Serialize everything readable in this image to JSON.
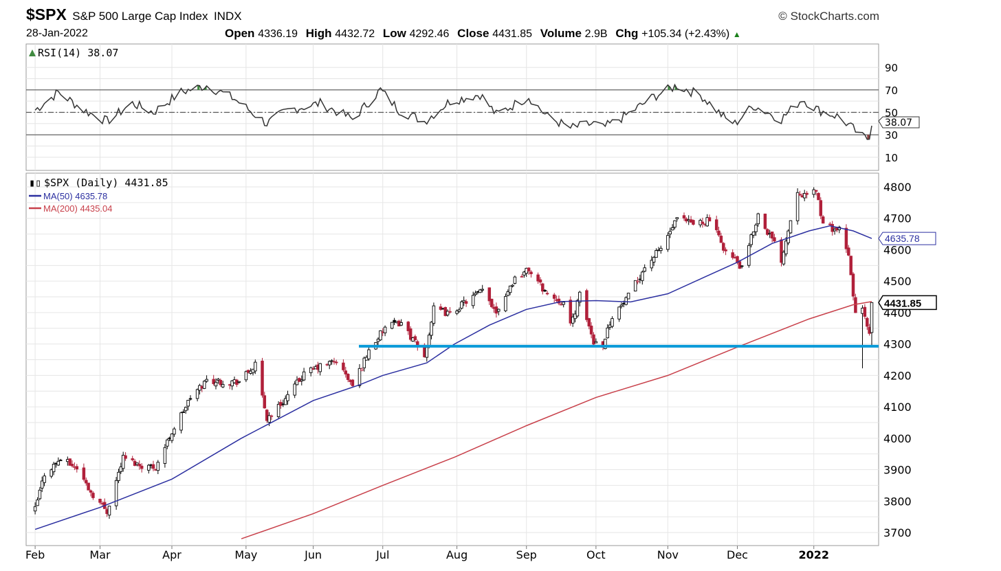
{
  "header": {
    "symbol": "$SPX",
    "name": "S&P 500 Large Cap Index",
    "exchange": "INDX",
    "date": "28-Jan-2022",
    "brand": "StockCharts.com",
    "ohlc": {
      "open_label": "Open",
      "open": "4336.19",
      "high_label": "High",
      "high": "4432.72",
      "low_label": "Low",
      "low": "4292.46",
      "close_label": "Close",
      "close": "4431.85",
      "volume_label": "Volume",
      "volume": "2.9B",
      "chg_label": "Chg",
      "chg": "+105.34 (+2.43%)"
    }
  },
  "colors": {
    "up_candle": "#000000",
    "down_candle": "#b0203a",
    "ma50": "#2b2fa0",
    "ma200": "#c8404a",
    "support_line": "#0a9ad8",
    "rsi_line": "#333333",
    "rsi_overbought_fill": "#3f8a3f",
    "rsi_oversold_fill": "#8a3f3f"
  },
  "chart_data": [
    {
      "type": "line",
      "title": "RSI(14) 38.07",
      "legend": "RSI(14) 38.07",
      "last_value": "38.07",
      "ylim": [
        0,
        100
      ],
      "y_ticks": [
        "90",
        "70",
        "50",
        "30",
        "10"
      ],
      "reference_lines": [
        30,
        50,
        70
      ],
      "points": [
        [
          "2021-02-01",
          52
        ],
        [
          "2021-02-11",
          68
        ],
        [
          "2021-02-22",
          52
        ],
        [
          "2021-03-04",
          42
        ],
        [
          "2021-03-15",
          58
        ],
        [
          "2021-03-24",
          50
        ],
        [
          "2021-04-05",
          68
        ],
        [
          "2021-04-16",
          74
        ],
        [
          "2021-04-28",
          62
        ],
        [
          "2021-05-12",
          40
        ],
        [
          "2021-05-21",
          52
        ],
        [
          "2021-06-04",
          58
        ],
        [
          "2021-06-18",
          44
        ],
        [
          "2021-06-30",
          70
        ],
        [
          "2021-07-08",
          52
        ],
        [
          "2021-07-19",
          42
        ],
        [
          "2021-07-30",
          60
        ],
        [
          "2021-08-12",
          66
        ],
        [
          "2021-08-19",
          48
        ],
        [
          "2021-09-02",
          64
        ],
        [
          "2021-09-10",
          46
        ],
        [
          "2021-09-20",
          36
        ],
        [
          "2021-09-30",
          40
        ],
        [
          "2021-10-04",
          36
        ],
        [
          "2021-10-13",
          46
        ],
        [
          "2021-10-26",
          64
        ],
        [
          "2021-11-05",
          74
        ],
        [
          "2021-11-16",
          64
        ],
        [
          "2021-11-26",
          44
        ],
        [
          "2021-11-30",
          40
        ],
        [
          "2021-12-08",
          56
        ],
        [
          "2021-12-20",
          44
        ],
        [
          "2021-12-29",
          62
        ],
        [
          "2022-01-05",
          52
        ],
        [
          "2022-01-14",
          46
        ],
        [
          "2022-01-24",
          28
        ],
        [
          "2022-01-27",
          26
        ],
        [
          "2022-01-28",
          38.07
        ]
      ]
    },
    {
      "type": "line",
      "title": "$SPX (Daily) 4431.85",
      "ylim": [
        3680,
        4830
      ],
      "y_ticks": [
        "4800",
        "4700",
        "4600",
        "4500",
        "4400",
        "4300",
        "4200",
        "4100",
        "4000",
        "3900",
        "3800",
        "3700"
      ],
      "x_ticks": [
        "Feb",
        "Mar",
        "Apr",
        "May",
        "Jun",
        "Jul",
        "Aug",
        "Sep",
        "Oct",
        "Nov",
        "Dec",
        "2022"
      ],
      "series": [
        {
          "name": "$SPX (Daily) 4431.85",
          "label": "$SPX (Daily) 4431.85",
          "last_value": "4431.85",
          "points": [
            [
              "2021-02-01",
              3774
            ],
            [
              "2021-02-05",
              3887
            ],
            [
              "2021-02-12",
              3934
            ],
            [
              "2021-02-19",
              3906
            ],
            [
              "2021-02-25",
              3829
            ],
            [
              "2021-03-04",
              3768
            ],
            [
              "2021-03-11",
              3939
            ],
            [
              "2021-03-18",
              3915
            ],
            [
              "2021-03-25",
              3909
            ],
            [
              "2021-04-01",
              4020
            ],
            [
              "2021-04-09",
              4128
            ],
            [
              "2021-04-16",
              4185
            ],
            [
              "2021-04-23",
              4180
            ],
            [
              "2021-04-30",
              4181
            ],
            [
              "2021-05-07",
              4232
            ],
            [
              "2021-05-12",
              4063
            ],
            [
              "2021-05-19",
              4116
            ],
            [
              "2021-05-28",
              4204
            ],
            [
              "2021-06-04",
              4229
            ],
            [
              "2021-06-11",
              4247
            ],
            [
              "2021-06-18",
              4166
            ],
            [
              "2021-06-25",
              4280
            ],
            [
              "2021-07-02",
              4352
            ],
            [
              "2021-07-09",
              4369
            ],
            [
              "2021-07-19",
              4258
            ],
            [
              "2021-07-23",
              4411
            ],
            [
              "2021-07-30",
              4395
            ],
            [
              "2021-08-06",
              4437
            ],
            [
              "2021-08-13",
              4468
            ],
            [
              "2021-08-19",
              4405
            ],
            [
              "2021-08-27",
              4509
            ],
            [
              "2021-09-02",
              4537
            ],
            [
              "2021-09-10",
              4458
            ],
            [
              "2021-09-17",
              4432
            ],
            [
              "2021-09-20",
              4357
            ],
            [
              "2021-09-24",
              4455
            ],
            [
              "2021-09-30",
              4307
            ],
            [
              "2021-10-04",
              4300
            ],
            [
              "2021-10-08",
              4391
            ],
            [
              "2021-10-14",
              4438
            ],
            [
              "2021-10-22",
              4544
            ],
            [
              "2021-10-29",
              4605
            ],
            [
              "2021-11-05",
              4697
            ],
            [
              "2021-11-12",
              4682
            ],
            [
              "2021-11-19",
              4697
            ],
            [
              "2021-11-26",
              4594
            ],
            [
              "2021-11-30",
              4567
            ],
            [
              "2021-12-03",
              4538
            ],
            [
              "2021-12-10",
              4712
            ],
            [
              "2021-12-17",
              4620
            ],
            [
              "2021-12-20",
              4568
            ],
            [
              "2021-12-27",
              4791
            ],
            [
              "2021-12-31",
              4766
            ],
            [
              "2022-01-04",
              4793
            ],
            [
              "2022-01-07",
              4677
            ],
            [
              "2022-01-14",
              4662
            ],
            [
              "2022-01-18",
              4577
            ],
            [
              "2022-01-21",
              4398
            ],
            [
              "2022-01-24",
              4410
            ],
            [
              "2022-01-27",
              4326
            ],
            [
              "2022-01-28",
              4431.85
            ]
          ]
        },
        {
          "name": "MA(50) 4635.78",
          "label": "MA(50) 4635.78",
          "last_value": "4635.78",
          "points": [
            [
              "2021-02-01",
              3710
            ],
            [
              "2021-03-01",
              3780
            ],
            [
              "2021-04-01",
              3870
            ],
            [
              "2021-05-01",
              4000
            ],
            [
              "2021-06-01",
              4120
            ],
            [
              "2021-06-21",
              4170
            ],
            [
              "2021-07-01",
              4200
            ],
            [
              "2021-07-20",
              4240
            ],
            [
              "2021-08-01",
              4300
            ],
            [
              "2021-08-16",
              4360
            ],
            [
              "2021-09-01",
              4410
            ],
            [
              "2021-09-16",
              4435
            ],
            [
              "2021-10-01",
              4438
            ],
            [
              "2021-10-16",
              4434
            ],
            [
              "2021-11-01",
              4460
            ],
            [
              "2021-11-16",
              4510
            ],
            [
              "2021-12-01",
              4560
            ],
            [
              "2021-12-16",
              4620
            ],
            [
              "2022-01-01",
              4660
            ],
            [
              "2022-01-10",
              4676
            ],
            [
              "2022-01-20",
              4660
            ],
            [
              "2022-01-28",
              4635.78
            ]
          ]
        },
        {
          "name": "MA(200) 4435.04",
          "label": "MA(200) 4435.04",
          "last_value": "4435.04",
          "points": [
            [
              "2021-05-01",
              3680
            ],
            [
              "2021-06-01",
              3760
            ],
            [
              "2021-07-01",
              3850
            ],
            [
              "2021-08-01",
              3940
            ],
            [
              "2021-09-01",
              4040
            ],
            [
              "2021-10-01",
              4130
            ],
            [
              "2021-11-01",
              4200
            ],
            [
              "2021-12-01",
              4290
            ],
            [
              "2022-01-01",
              4380
            ],
            [
              "2022-01-20",
              4425
            ],
            [
              "2022-01-28",
              4435.04
            ]
          ]
        }
      ],
      "support_level": 4293,
      "grid": true
    }
  ]
}
